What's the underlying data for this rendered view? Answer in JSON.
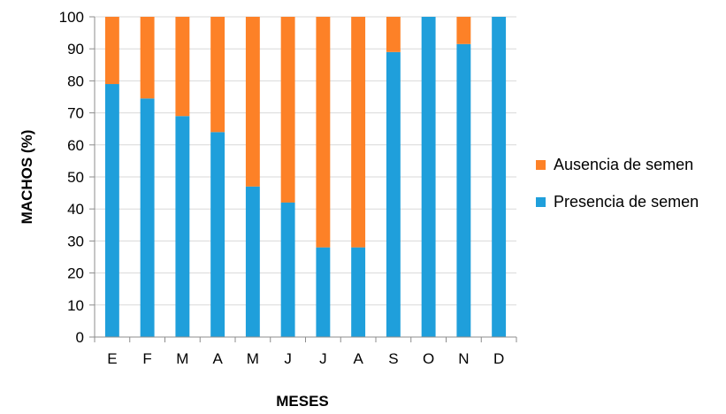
{
  "chart_data": {
    "type": "bar",
    "stacked": true,
    "percent_stacked": true,
    "categories": [
      "E",
      "F",
      "M",
      "A",
      "M",
      "J",
      "J",
      "A",
      "S",
      "O",
      "N",
      "D"
    ],
    "series": [
      {
        "name": "Presencia de semen",
        "color": "#1f9fdb",
        "values": [
          79,
          74.5,
          69,
          64,
          47,
          42,
          28,
          28,
          89,
          100,
          91.5,
          100
        ]
      },
      {
        "name": "Ausencia de semen",
        "color": "#fd8127",
        "values": [
          21,
          25.5,
          31,
          36,
          53,
          58,
          72,
          72,
          11,
          0,
          8.5,
          0
        ]
      }
    ],
    "xlabel": "MESES",
    "ylabel": "MACHOS (%)",
    "ylim": [
      0,
      100
    ],
    "yticks": [
      0,
      10,
      20,
      30,
      40,
      50,
      60,
      70,
      80,
      90,
      100
    ],
    "grid": true,
    "legend_position": "right"
  }
}
